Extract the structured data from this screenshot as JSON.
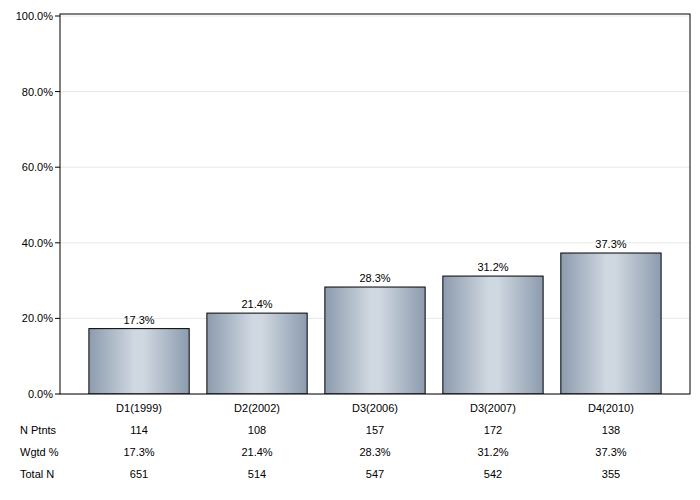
{
  "chart_data": {
    "type": "bar",
    "categories": [
      "D1(1999)",
      "D2(2002)",
      "D3(2006)",
      "D3(2007)",
      "D4(2010)"
    ],
    "values": [
      17.3,
      21.4,
      28.3,
      31.2,
      37.3
    ],
    "value_labels": [
      "17.3%",
      "21.4%",
      "28.3%",
      "31.2%",
      "37.3%"
    ],
    "data_labels": true,
    "color": "#a7b6c7",
    "ylim": [
      0,
      100
    ],
    "yticks": [
      {
        "value": 0,
        "label": "0.0%"
      },
      {
        "value": 20,
        "label": "20.0%"
      },
      {
        "value": 40,
        "label": "40.0%"
      },
      {
        "value": 60,
        "label": "60.0%"
      },
      {
        "value": 80,
        "label": "80.0%"
      },
      {
        "value": 100,
        "label": "100.0%"
      }
    ],
    "grid": true,
    "table": {
      "rows": [
        {
          "label": "N Ptnts",
          "values": [
            114,
            108,
            157,
            172,
            138
          ]
        },
        {
          "label": "Wgtd %",
          "values": [
            17.3,
            21.4,
            28.3,
            31.2,
            37.3
          ],
          "value_labels": [
            "17.3%",
            "21.4%",
            "28.3%",
            "31.2%",
            "37.3%"
          ]
        },
        {
          "label": "Total N",
          "values": [
            651,
            514,
            547,
            542,
            355
          ]
        }
      ]
    }
  }
}
